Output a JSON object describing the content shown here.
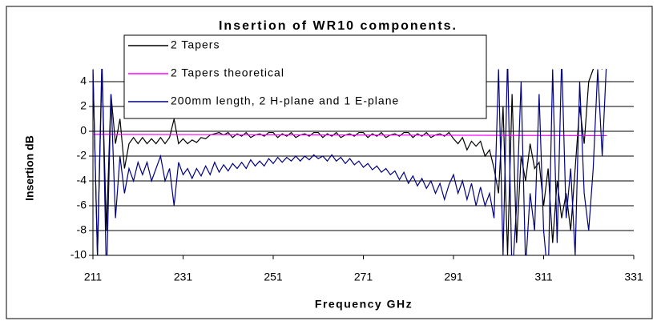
{
  "chart_data": {
    "type": "line",
    "title": "Insertion of WR10 components.",
    "x_label": "Frequency GHz",
    "y_label": "Insertion dB",
    "x": [
      211,
      212,
      213,
      214,
      215,
      216,
      217,
      218,
      219,
      220,
      221,
      222,
      223,
      224,
      225,
      226,
      227,
      228,
      229,
      230,
      231,
      232,
      233,
      234,
      235,
      236,
      237,
      238,
      239,
      240,
      241,
      242,
      243,
      244,
      245,
      246,
      247,
      248,
      249,
      250,
      251,
      252,
      253,
      254,
      255,
      256,
      257,
      258,
      259,
      260,
      261,
      262,
      263,
      264,
      265,
      266,
      267,
      268,
      269,
      270,
      271,
      272,
      273,
      274,
      275,
      276,
      277,
      278,
      279,
      280,
      281,
      282,
      283,
      284,
      285,
      286,
      287,
      288,
      289,
      290,
      291,
      292,
      293,
      294,
      295,
      296,
      297,
      298,
      299,
      300,
      301,
      302,
      303,
      304,
      305,
      306,
      307,
      308,
      309,
      310,
      311,
      312,
      313,
      314,
      315,
      316,
      317,
      318,
      319,
      320,
      321,
      322,
      323,
      324,
      325
    ],
    "series": [
      {
        "name": "2 Tapers",
        "color": "#000000",
        "values": [
          5,
          -10,
          5,
          -8,
          3,
          -1,
          1,
          -3,
          -1,
          -0.5,
          -1,
          -0.5,
          -1,
          -0.6,
          -1,
          -0.5,
          -1,
          -0.5,
          1,
          -1,
          -0.6,
          -1,
          -0.7,
          -0.9,
          -0.5,
          -0.6,
          -0.3,
          -0.2,
          -0.1,
          -0.3,
          -0.1,
          -0.5,
          -0.2,
          -0.4,
          -0.1,
          -0.5,
          -0.3,
          -0.2,
          -0.4,
          -0.1,
          -0.1,
          -0.5,
          -0.2,
          -0.4,
          -0.1,
          -0.5,
          -0.3,
          -0.2,
          -0.4,
          -0.1,
          -0.1,
          -0.5,
          -0.2,
          -0.4,
          -0.1,
          -0.5,
          -0.3,
          -0.2,
          -0.4,
          -0.1,
          -0.1,
          -0.5,
          -0.2,
          -0.4,
          -0.1,
          -0.5,
          -0.3,
          -0.2,
          -0.4,
          -0.1,
          -0.1,
          -0.5,
          -0.2,
          -0.4,
          -0.1,
          -0.5,
          -0.3,
          -0.2,
          -0.4,
          -0.1,
          -0.6,
          -1,
          -0.5,
          -1.5,
          -0.8,
          -1.2,
          -0.8,
          -2,
          -1.5,
          -3,
          -5,
          2,
          -10,
          3,
          -9,
          -2,
          -4,
          -1,
          -3,
          -2.5,
          -6,
          -3,
          -9,
          -4,
          -7,
          -5,
          -8,
          -3,
          2,
          -1,
          4,
          5,
          6,
          5,
          null
        ]
      },
      {
        "name": "2 Tapers theoretical",
        "color": "#ff00ff",
        "x": [
          211,
          325
        ],
        "values": [
          -0.25,
          -0.35
        ]
      },
      {
        "name": "200mm length, 2 H-plane and 1 E-plane",
        "color": "#000080",
        "values": [
          5,
          -10,
          6,
          -12,
          3,
          -7,
          -2,
          -5,
          -3,
          -4,
          -2.5,
          -3.5,
          -2.5,
          -4,
          -3,
          -2,
          -4,
          -3,
          -6,
          -2.5,
          -3.5,
          -3,
          -3.8,
          -3,
          -3.6,
          -2.8,
          -3.5,
          -2.5,
          -3.3,
          -2.7,
          -3.2,
          -2.6,
          -3,
          -2.5,
          -3,
          -2.3,
          -2.8,
          -2.4,
          -2.8,
          -2.2,
          -2.6,
          -2.1,
          -2.5,
          -2.1,
          -2.4,
          -2,
          -2.4,
          -2,
          -2.3,
          -1.9,
          -2.2,
          -2,
          -2.4,
          -1.9,
          -2.4,
          -2.1,
          -2.6,
          -2.2,
          -2.7,
          -2.4,
          -2.9,
          -2.6,
          -3.1,
          -2.8,
          -3.3,
          -3,
          -3.5,
          -3.2,
          -3.9,
          -3.3,
          -4.2,
          -3.6,
          -4.4,
          -3.8,
          -4.6,
          -4,
          -5,
          -4.2,
          -5.5,
          -4.3,
          -3.5,
          -5,
          -4,
          -5.5,
          -4.2,
          -6,
          -4.5,
          -6,
          -5,
          -7,
          5,
          -10,
          6,
          -12,
          -6,
          4,
          -11,
          -5,
          -8,
          3,
          -8,
          -12,
          5,
          -9,
          6,
          -7,
          -3,
          -10,
          4,
          -5,
          -8,
          -3,
          5,
          -2,
          6
        ]
      }
    ],
    "xlim": [
      211,
      331
    ],
    "xticks": [
      211,
      231,
      251,
      271,
      291,
      311,
      331
    ],
    "ylim": [
      -10,
      5
    ],
    "yticks": [
      -10,
      -8,
      -6,
      -4,
      -2,
      0,
      2,
      4
    ],
    "grid": true
  }
}
